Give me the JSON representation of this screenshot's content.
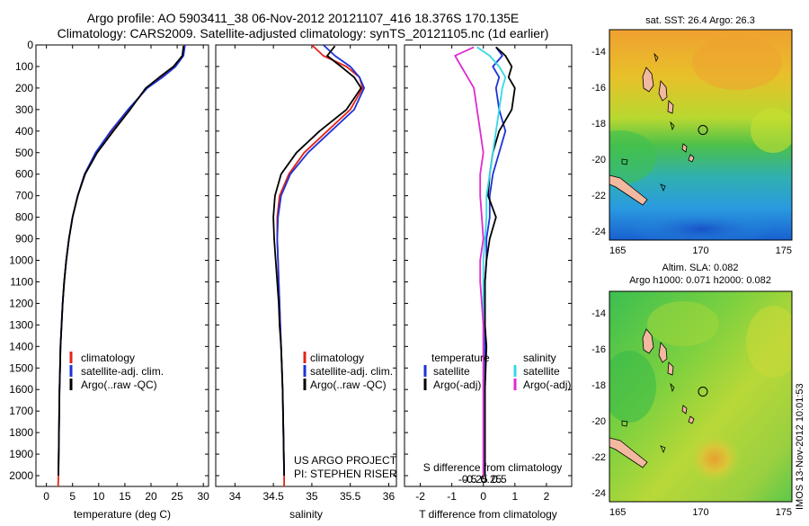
{
  "header": {
    "title_line1": "Argo profile: AO 5903411_38 06-Nov-2012 20121107_416 18.376S 170.135E",
    "title_line2": "Climatology: CARS2009. Satellite-adjusted climatology: synTS_20121105.nc (1d earlier)"
  },
  "colors": {
    "climatology": "#e3231b",
    "satellite": "#1c33d6",
    "argo": "#000000",
    "salinity_satellite": "#36d8e6",
    "salinity_argo": "#e02ad0"
  },
  "chart_data": [
    {
      "type": "line",
      "id": "temperature",
      "xlabel": "temperature (deg C)",
      "xlim": [
        -2,
        31
      ],
      "ylim": [
        2050,
        0
      ],
      "xticks": [
        0,
        5,
        10,
        15,
        20,
        25,
        30
      ],
      "yticks": [
        0,
        100,
        200,
        300,
        400,
        500,
        600,
        700,
        800,
        900,
        1000,
        1100,
        1200,
        1300,
        1400,
        1500,
        1600,
        1700,
        1800,
        1900,
        2000
      ],
      "legend": [
        "climatology",
        "satellite-adj. clim.",
        "Argo(..raw -QC)"
      ],
      "series": [
        {
          "name": "climatology",
          "color_key": "climatology",
          "x": [
            26.3,
            26.0,
            24.5,
            22.0,
            19.2,
            15.8,
            12.5,
            9.5,
            7.3,
            6.0,
            5.0,
            4.3,
            3.8,
            3.4,
            3.1,
            2.9,
            2.7,
            2.6,
            2.5,
            2.4,
            2.3,
            2.25
          ],
          "y": [
            0,
            50,
            100,
            150,
            200,
            300,
            400,
            500,
            600,
            700,
            800,
            900,
            1000,
            1100,
            1200,
            1300,
            1400,
            1500,
            1600,
            1800,
            2000,
            2050
          ]
        },
        {
          "name": "satellite-adj. clim.",
          "color_key": "satellite",
          "x": [
            26.5,
            26.2,
            24.7,
            22.2,
            19.3,
            15.6,
            12.3,
            9.4,
            7.3,
            6.0,
            5.0,
            4.3,
            3.8,
            3.4,
            3.1,
            2.9,
            2.7,
            2.6,
            2.5,
            2.4,
            2.3
          ],
          "y": [
            0,
            50,
            100,
            150,
            200,
            300,
            400,
            500,
            600,
            700,
            800,
            900,
            1000,
            1100,
            1200,
            1300,
            1400,
            1500,
            1600,
            1800,
            2000
          ]
        },
        {
          "name": "Argo(..raw -QC)",
          "color_key": "argo",
          "x": [
            26.2,
            26.0,
            24.3,
            21.6,
            19.0,
            16.0,
            12.8,
            9.7,
            7.4,
            6.0,
            5.0,
            4.3,
            3.8,
            3.4,
            3.1,
            2.9,
            2.7,
            2.6,
            2.5,
            2.4,
            2.3
          ],
          "y": [
            5,
            50,
            100,
            150,
            200,
            300,
            400,
            500,
            600,
            700,
            800,
            900,
            1000,
            1100,
            1200,
            1300,
            1400,
            1500,
            1600,
            1800,
            2000
          ]
        }
      ]
    },
    {
      "type": "line",
      "id": "salinity",
      "xlabel": "salinity",
      "xlim": [
        33.75,
        36.1
      ],
      "ylim": [
        2050,
        0
      ],
      "xticks": [
        34,
        34.5,
        35,
        35.5,
        36
      ],
      "legend": [
        "climatology",
        "satellite-adj. clim.",
        "Argo(..raw -QC)"
      ],
      "annotation": [
        "US ARGO PROJECT",
        "PI: STEPHEN RISER"
      ],
      "series": [
        {
          "name": "climatology",
          "color_key": "climatology",
          "x": [
            35.0,
            35.15,
            35.45,
            35.62,
            35.66,
            35.5,
            35.2,
            34.9,
            34.7,
            34.58,
            34.55,
            34.55,
            34.56,
            34.57,
            34.58,
            34.59,
            34.6,
            34.61,
            34.62,
            34.63,
            34.64,
            34.64
          ],
          "y": [
            0,
            50,
            100,
            150,
            200,
            300,
            400,
            500,
            600,
            700,
            800,
            900,
            1000,
            1100,
            1200,
            1300,
            1400,
            1500,
            1600,
            1800,
            2000,
            2050
          ]
        },
        {
          "name": "satellite-adj. clim.",
          "color_key": "satellite",
          "x": [
            35.15,
            35.3,
            35.5,
            35.62,
            35.68,
            35.55,
            35.25,
            34.95,
            34.72,
            34.6,
            34.56,
            34.55,
            34.56,
            34.57,
            34.58,
            34.59,
            34.6,
            34.61,
            34.62,
            34.63,
            34.64
          ],
          "y": [
            0,
            50,
            100,
            150,
            200,
            300,
            400,
            500,
            600,
            700,
            800,
            900,
            1000,
            1100,
            1200,
            1300,
            1400,
            1500,
            1600,
            1800,
            2000
          ]
        },
        {
          "name": "Argo(..raw -QC)",
          "color_key": "argo",
          "x": [
            35.3,
            35.2,
            35.38,
            35.55,
            35.64,
            35.45,
            35.1,
            34.8,
            34.6,
            34.52,
            34.5,
            34.51,
            34.53,
            34.55,
            34.57,
            34.58,
            34.6,
            34.61,
            34.62,
            34.63,
            34.64
          ],
          "y": [
            5,
            50,
            100,
            150,
            200,
            300,
            400,
            500,
            600,
            700,
            800,
            900,
            1000,
            1100,
            1200,
            1300,
            1400,
            1500,
            1600,
            1800,
            2000
          ]
        }
      ]
    },
    {
      "type": "line",
      "id": "difference",
      "xlabel": "T difference from climatology",
      "xlabel_top": "S difference from climatology",
      "xlim": [
        -2.5,
        2.8
      ],
      "ylim": [
        2050,
        0
      ],
      "xticks": [
        -2,
        -1,
        0,
        1,
        2
      ],
      "xticks_s": [
        -0.5,
        -0.25,
        0,
        0.25,
        0.5
      ],
      "legend_groups": [
        {
          "heading": "temperature",
          "items": [
            "satellite",
            "Argo(-adj)"
          ]
        },
        {
          "heading": "salinity",
          "items": [
            "satellite",
            "Argo(-adj)"
          ]
        }
      ],
      "series": [
        {
          "name": "temperature satellite",
          "color_key": "satellite",
          "x": [
            0.4,
            0.6,
            0.3,
            0.5,
            0.4,
            0.5,
            0.7,
            0.5,
            0.3,
            0.2,
            0.2,
            0.1,
            0.1,
            0.05,
            0.05,
            0.05,
            0.05,
            0.05,
            0.05,
            0.05
          ],
          "y": [
            10,
            50,
            100,
            150,
            200,
            300,
            400,
            500,
            600,
            700,
            800,
            900,
            1000,
            1100,
            1200,
            1300,
            1400,
            1600,
            1800,
            2000
          ]
        },
        {
          "name": "temperature Argo(-adj)",
          "color_key": "argo",
          "x": [
            0.4,
            0.7,
            0.9,
            0.8,
            1.0,
            0.9,
            0.5,
            0.3,
            0.2,
            0.15,
            0.4,
            0.2,
            0.1,
            0.05,
            0.05,
            0.05,
            0.1,
            0.05,
            0.05,
            0.05
          ],
          "y": [
            10,
            50,
            100,
            150,
            200,
            300,
            400,
            500,
            600,
            700,
            800,
            900,
            1000,
            1100,
            1200,
            1300,
            1400,
            1600,
            1800,
            2000
          ]
        },
        {
          "name": "salinity satellite",
          "color_key": "salinity_satellite",
          "x": [
            -0.2,
            0.2,
            0.5,
            0.7,
            0.6,
            0.5,
            0.4,
            0.3,
            0.2,
            0.1,
            0.1,
            0.05,
            0.0,
            0.0,
            0.0,
            0.0,
            0.0,
            0.0,
            0.0,
            0.0
          ],
          "y": [
            10,
            50,
            100,
            150,
            200,
            300,
            400,
            500,
            600,
            700,
            800,
            900,
            1000,
            1100,
            1200,
            1300,
            1400,
            1600,
            1800,
            2000
          ]
        },
        {
          "name": "salinity Argo(-adj)",
          "color_key": "salinity_argo",
          "x": [
            -0.3,
            -0.9,
            -0.7,
            -0.5,
            -0.3,
            -0.2,
            -0.1,
            0.0,
            -0.1,
            -0.1,
            -0.05,
            0.0,
            -0.1,
            -0.1,
            -0.05,
            0.0,
            0.0,
            0.0,
            0.0,
            0.0
          ],
          "y": [
            10,
            50,
            100,
            150,
            200,
            300,
            400,
            500,
            600,
            700,
            800,
            900,
            1000,
            1100,
            1200,
            1300,
            1400,
            1600,
            1800,
            2000
          ]
        }
      ]
    },
    {
      "type": "heatmap",
      "id": "sst-map",
      "title": "sat. SST: 26.4  Argo: 26.3",
      "xlim": [
        164.5,
        175.5
      ],
      "ylim": [
        -24.5,
        -12.8
      ],
      "xticks": [
        165,
        170,
        175
      ],
      "yticks": [
        -14,
        -16,
        -18,
        -20,
        -22,
        -24
      ],
      "argo_position": [
        170.135,
        -18.376
      ]
    },
    {
      "type": "heatmap",
      "id": "sla-map",
      "title_line1": "Altim. SLA: 0.082",
      "title_line2": "Argo h1000: 0.071  h2000: 0.082",
      "xlim": [
        164.5,
        175.5
      ],
      "ylim": [
        -24.5,
        -12.8
      ],
      "xticks": [
        165,
        170,
        175
      ],
      "yticks": [
        -14,
        -16,
        -18,
        -20,
        -22,
        -24
      ],
      "argo_position": [
        170.135,
        -18.376
      ]
    }
  ],
  "footer": {
    "stamp": "IMOS 13-Nov-2012 10:01:53"
  }
}
